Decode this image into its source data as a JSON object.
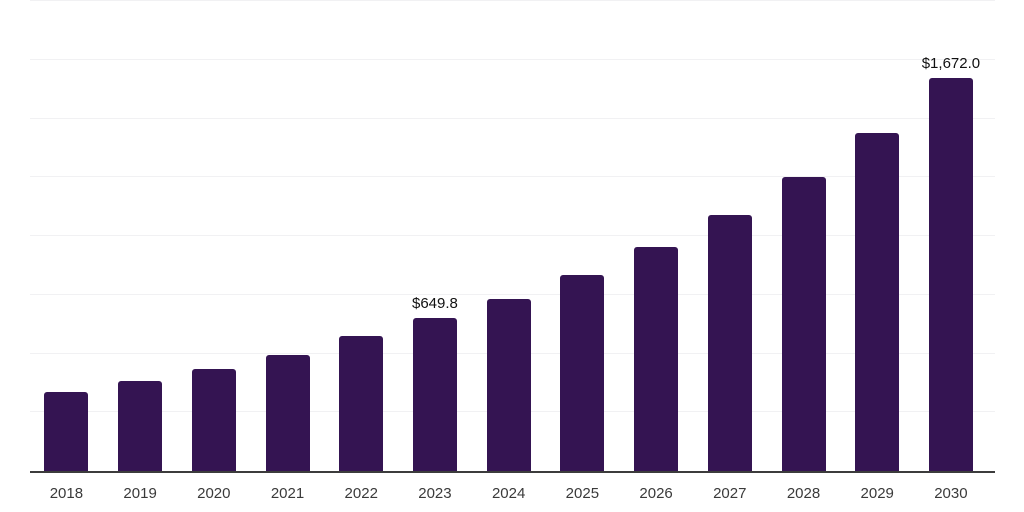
{
  "chart_data": {
    "type": "bar",
    "title": "",
    "xlabel": "",
    "ylabel": "",
    "categories": [
      "2018",
      "2019",
      "2020",
      "2021",
      "2022",
      "2023",
      "2024",
      "2025",
      "2026",
      "2027",
      "2028",
      "2029",
      "2030"
    ],
    "values": [
      337,
      382,
      433,
      495,
      573,
      649.8,
      731,
      835,
      952,
      1091,
      1250,
      1440,
      1672.0
    ],
    "annotations": [
      {
        "index": 5,
        "text": "$649.8"
      },
      {
        "index": 12,
        "text": "$1,672.0"
      }
    ],
    "ylim": [
      0,
      2000
    ],
    "gridline_interval": 250,
    "grid": "horizontal",
    "legend": "none",
    "y_axis_tick_labels_visible": false,
    "bar_color": "#341452",
    "gridline_color": "#f1f1f3",
    "axis_line_color": "#3c3c3c",
    "tick_label_color": "#3a3a3a",
    "annotation_color": "#111111",
    "background_color": "#ffffff"
  }
}
